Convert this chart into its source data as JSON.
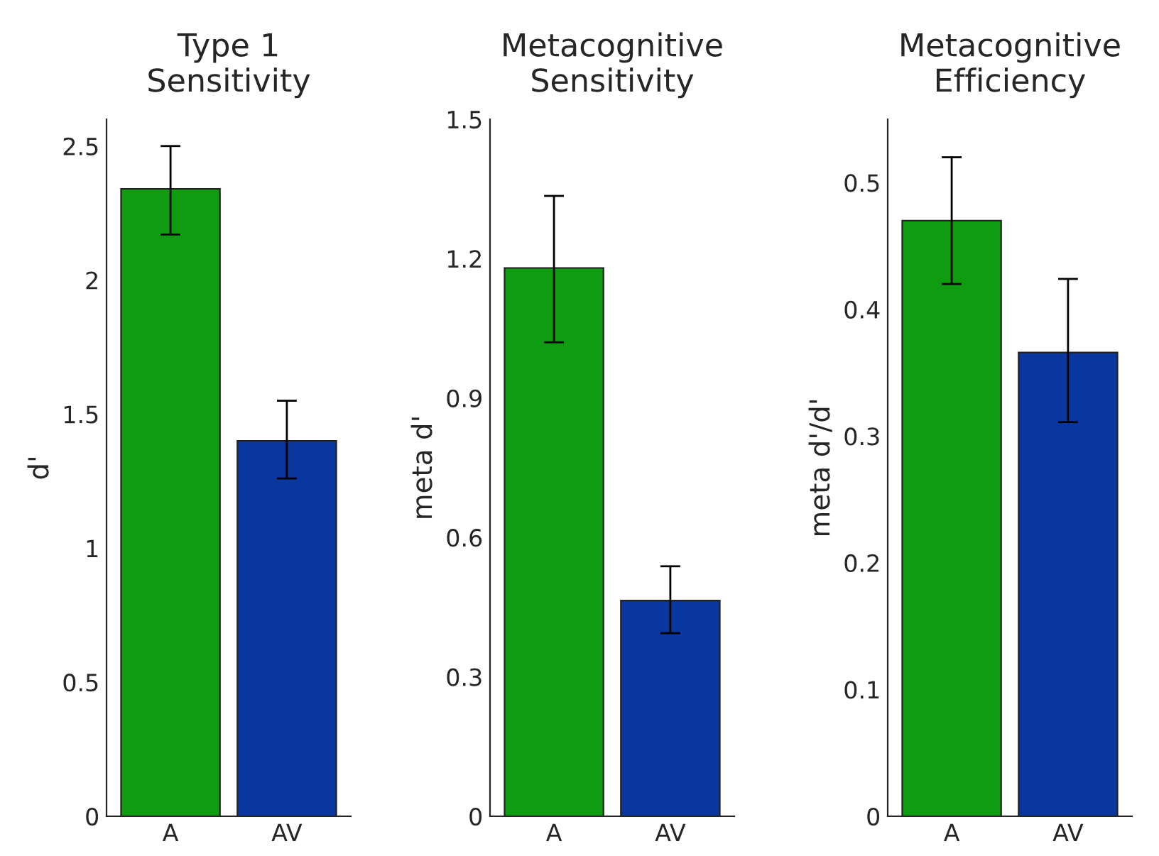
{
  "chart_data": [
    {
      "type": "bar",
      "title": "Type 1\nSensitivity",
      "ylabel": "d'",
      "categories": [
        "A",
        "AV"
      ],
      "values": [
        2.34,
        1.4
      ],
      "colors": [
        "#109c10",
        "#0a36a0"
      ],
      "errors": [
        [
          2.17,
          2.5
        ],
        [
          1.26,
          1.55
        ]
      ],
      "ylim": [
        0,
        2.6
      ],
      "yticks": [
        0,
        0.5,
        1,
        1.5,
        2,
        2.5
      ],
      "grid": false
    },
    {
      "type": "bar",
      "title": "Metacognitive\nSensitivity",
      "ylabel": "meta d'",
      "categories": [
        "A",
        "AV"
      ],
      "values": [
        1.18,
        0.464
      ],
      "colors": [
        "#109c10",
        "#0a36a0"
      ],
      "errors": [
        [
          1.02,
          1.335
        ],
        [
          0.394,
          0.538
        ]
      ],
      "ylim": [
        0,
        1.5
      ],
      "yticks": [
        0,
        0.3,
        0.6,
        0.9,
        1.2,
        1.5
      ],
      "grid": false
    },
    {
      "type": "bar",
      "title": "Metacognitive\nEfficiency",
      "ylabel": "meta d'/d'",
      "categories": [
        "A",
        "AV"
      ],
      "values": [
        0.47,
        0.366
      ],
      "colors": [
        "#109c10",
        "#0a36a0"
      ],
      "errors": [
        [
          0.42,
          0.52
        ],
        [
          0.311,
          0.424
        ]
      ],
      "ylim": [
        0,
        0.55
      ],
      "yticks": [
        0,
        0.1,
        0.2,
        0.3,
        0.4,
        0.5
      ],
      "grid": false
    }
  ]
}
